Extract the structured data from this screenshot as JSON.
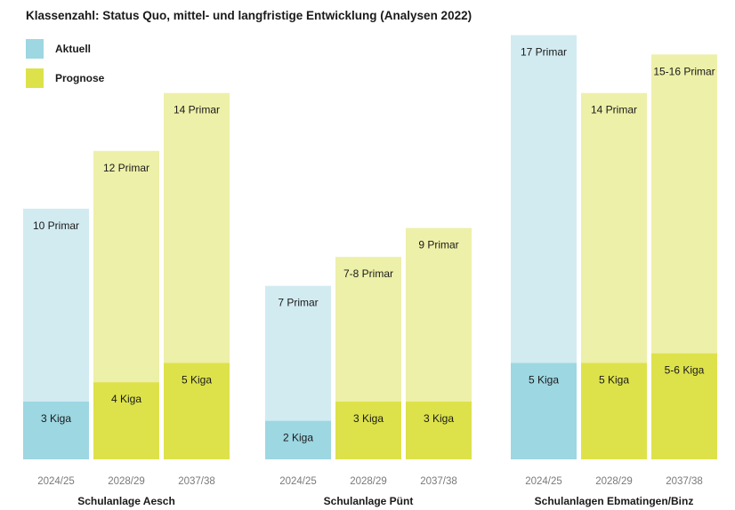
{
  "colors": {
    "aktuell_kiga": "#9dd7e2",
    "aktuell_primar": "#d2ebf1",
    "prognose_kiga": "#dde24a",
    "prognose_primar": "#edf0a8"
  },
  "chart_data": {
    "type": "bar",
    "stacked": true,
    "title": "Klassenzahl: Status Quo, mittel- und langfristige Entwicklung (Analysen 2022)",
    "legend": {
      "placement": "top-left",
      "entries": [
        {
          "key": "aktuell",
          "label": "Aktuell",
          "color": "#9dd7e2"
        },
        {
          "key": "prognose",
          "label": "Prognose",
          "color": "#dde24a"
        }
      ]
    },
    "grid": false,
    "ylim": [
      0,
      23
    ],
    "groups": [
      {
        "name": "Schulanlage Aesch",
        "bars": [
          {
            "x": "2024/25",
            "status": "aktuell",
            "kiga": 3,
            "primar": 10,
            "kiga_label": "3 Kiga",
            "primar_label": "10 Primar"
          },
          {
            "x": "2028/29",
            "status": "prognose",
            "kiga": 4,
            "primar": 12,
            "kiga_label": "4 Kiga",
            "primar_label": "12 Primar"
          },
          {
            "x": "2037/38",
            "status": "prognose",
            "kiga": 5,
            "primar": 14,
            "kiga_label": "5 Kiga",
            "primar_label": "14 Primar"
          }
        ]
      },
      {
        "name": "Schulanlage Pünt",
        "bars": [
          {
            "x": "2024/25",
            "status": "aktuell",
            "kiga": 2,
            "primar": 7,
            "kiga_label": "2 Kiga",
            "primar_label": "7 Primar"
          },
          {
            "x": "2028/29",
            "status": "prognose",
            "kiga": 3,
            "primar": 7.5,
            "kiga_label": "3 Kiga",
            "primar_label": "7-8 Primar"
          },
          {
            "x": "2037/38",
            "status": "prognose",
            "kiga": 3,
            "primar": 9,
            "kiga_label": "3 Kiga",
            "primar_label": "9 Primar"
          }
        ]
      },
      {
        "name": "Schulanlagen Ebmatingen/Binz",
        "bars": [
          {
            "x": "2024/25",
            "status": "aktuell",
            "kiga": 5,
            "primar": 17,
            "kiga_label": "5 Kiga",
            "primar_label": "17 Primar"
          },
          {
            "x": "2028/29",
            "status": "prognose",
            "kiga": 5,
            "primar": 14,
            "kiga_label": "5 Kiga",
            "primar_label": "14 Primar"
          },
          {
            "x": "2037/38",
            "status": "prognose",
            "kiga": 5.5,
            "primar": 15.5,
            "kiga_label": "5-6 Kiga",
            "primar_label": "15-16 Primar"
          }
        ]
      }
    ]
  }
}
